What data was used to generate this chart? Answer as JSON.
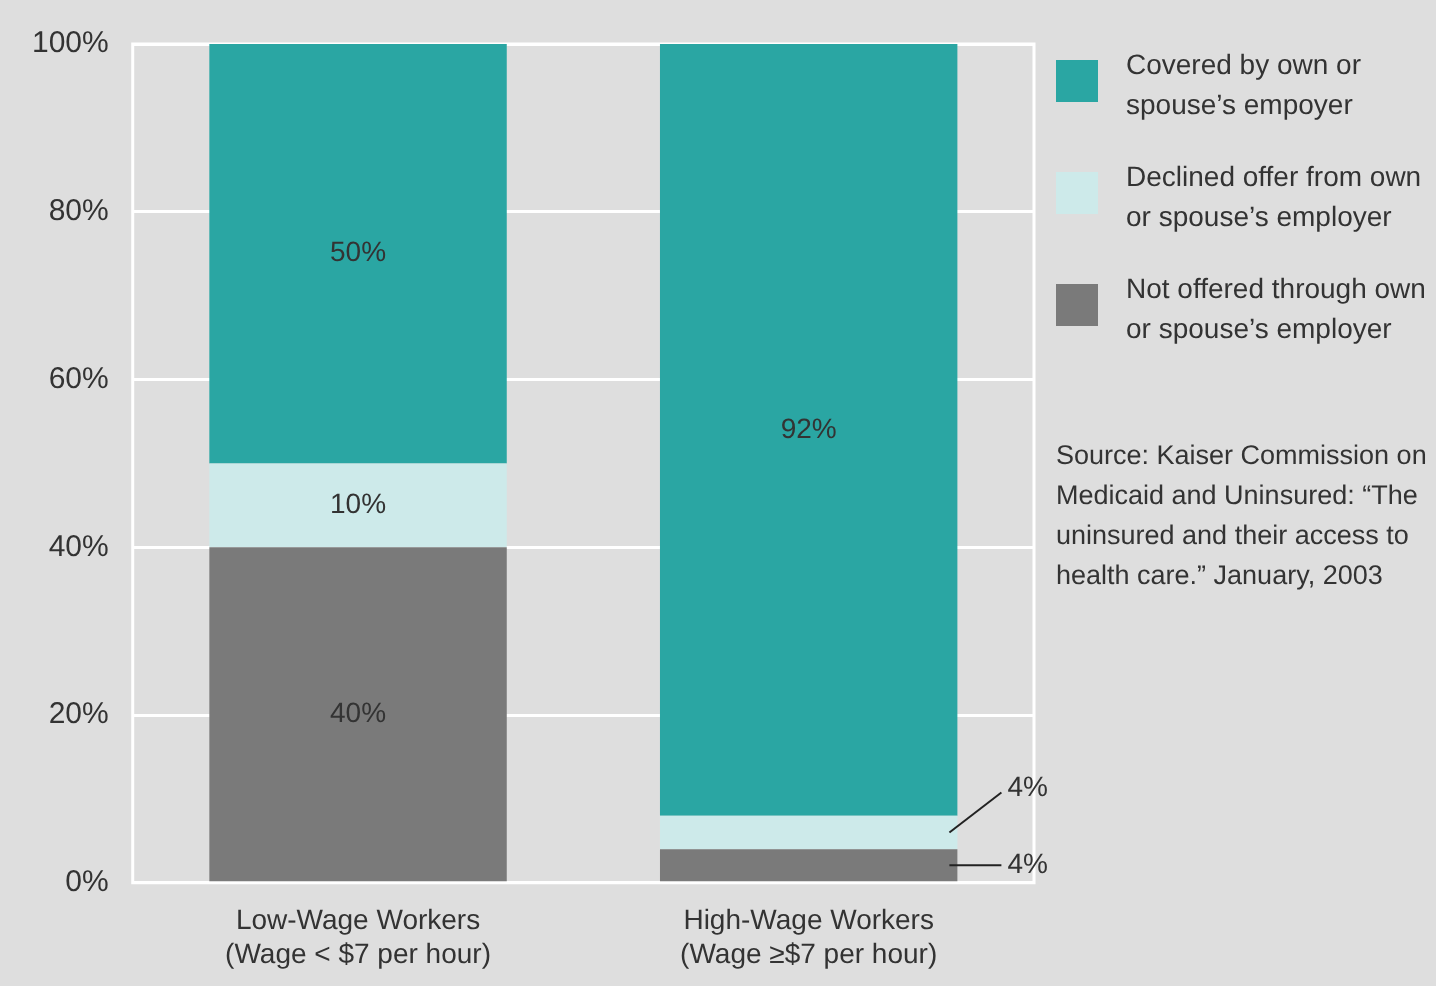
{
  "chart_data": {
    "type": "bar",
    "stacked": true,
    "categories": [
      "Low-Wage Workers\n(Wage < $7 per hour)",
      "High-Wage Workers\n(Wage ≥$7 per hour)"
    ],
    "series": [
      {
        "name": "Not offered through own or spouse’s employer",
        "color": "#7a7a7a",
        "values": [
          40,
          4
        ],
        "value_labels": [
          "40%",
          "4%"
        ]
      },
      {
        "name": "Declined offer from own or spouse’s employer",
        "color": "#cdeaea",
        "values": [
          10,
          4
        ],
        "value_labels": [
          "10%",
          "4%"
        ]
      },
      {
        "name": "Covered by own or spouse’s empoyer",
        "color": "#2aa6a3",
        "values": [
          50,
          92
        ],
        "value_labels": [
          "50%",
          "92%"
        ]
      }
    ],
    "ylim": [
      0,
      100
    ],
    "yticks": [
      {
        "value": 0,
        "label": "0%"
      },
      {
        "value": 20,
        "label": "20%"
      },
      {
        "value": 40,
        "label": "40%"
      },
      {
        "value": 60,
        "label": "60%"
      },
      {
        "value": 80,
        "label": "80%"
      },
      {
        "value": 100,
        "label": "100%"
      }
    ],
    "grid": "y",
    "legend": "right",
    "annotations": [
      "Source: Kaiser Commission on Medicaid and Uninsured: “The uninsured and their access to health care.” January, 2003"
    ]
  }
}
